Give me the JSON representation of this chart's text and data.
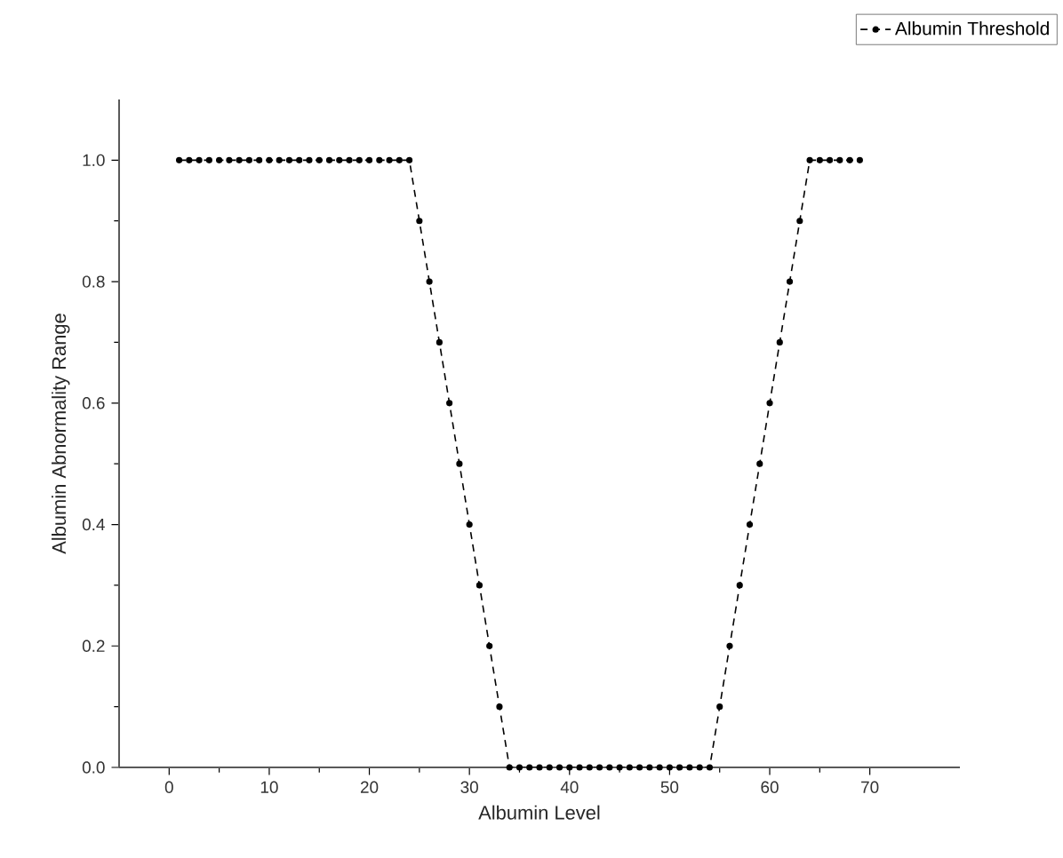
{
  "chart_data": {
    "type": "line",
    "xlabel": "Albumin Level",
    "ylabel": "Albumin Abnormality Range",
    "x": [
      1,
      2,
      3,
      4,
      5,
      6,
      7,
      8,
      9,
      10,
      11,
      12,
      13,
      14,
      15,
      16,
      17,
      18,
      19,
      20,
      21,
      22,
      23,
      24,
      25,
      26,
      27,
      28,
      29,
      30,
      31,
      32,
      33,
      34,
      35,
      36,
      37,
      38,
      39,
      40,
      41,
      42,
      43,
      44,
      45,
      46,
      47,
      48,
      49,
      50,
      51,
      52,
      53,
      54,
      55,
      56,
      57,
      58,
      59,
      60,
      61,
      62,
      63,
      64,
      65,
      66,
      67,
      68,
      69
    ],
    "series": [
      {
        "name": "Albumin Threshold",
        "color": "#000000",
        "values": [
          1,
          1,
          1,
          1,
          1,
          1,
          1,
          1,
          1,
          1,
          1,
          1,
          1,
          1,
          1,
          1,
          1,
          1,
          1,
          1,
          1,
          1,
          1,
          1,
          0.9,
          0.8,
          0.7,
          0.6,
          0.5,
          0.4,
          0.3,
          0.2,
          0.1,
          0,
          0,
          0,
          0,
          0,
          0,
          0,
          0,
          0,
          0,
          0,
          0,
          0,
          0,
          0,
          0,
          0,
          0,
          0,
          0,
          0,
          0.1,
          0.2,
          0.3,
          0.4,
          0.5,
          0.6,
          0.7,
          0.8,
          0.9,
          1,
          1,
          1,
          1,
          1,
          1
        ]
      }
    ],
    "xlim": [
      -5,
      79
    ],
    "ylim": [
      0,
      1.1
    ],
    "xticks": [
      0,
      10,
      20,
      30,
      40,
      50,
      60,
      70
    ],
    "yticks": [
      {
        "value": 0,
        "label": "0.0"
      },
      {
        "value": 0.2,
        "label": "0.2"
      },
      {
        "value": 0.4,
        "label": "0.4"
      },
      {
        "value": 0.6,
        "label": "0.6"
      },
      {
        "value": 0.8,
        "label": "0.8"
      },
      {
        "value": 1.0,
        "label": "1.0"
      }
    ],
    "legend": "top right",
    "marker": "circle",
    "line_style": "dashed"
  }
}
